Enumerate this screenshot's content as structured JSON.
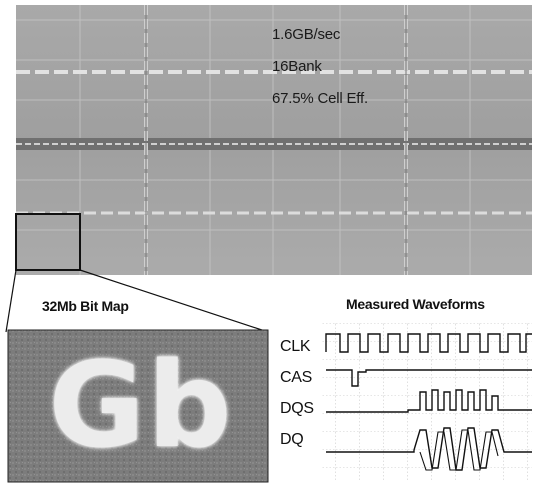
{
  "die_labels": {
    "bandwidth": "1.6GB/sec",
    "banks": "16Bank",
    "cell_eff": "67.5% Cell Eff."
  },
  "bitmap": {
    "caption": "32Mb Bit Map",
    "pattern_text": "Gb"
  },
  "waveforms": {
    "caption": "Measured Waveforms",
    "signals": [
      "CLK",
      "CAS",
      "DQS",
      "DQ"
    ]
  },
  "colors": {
    "die_bg": "#a8a8a8",
    "stripe": "#d8d8d8",
    "bitmap_bg": "#7a7a7a",
    "bitmap_text": "#ececec"
  }
}
